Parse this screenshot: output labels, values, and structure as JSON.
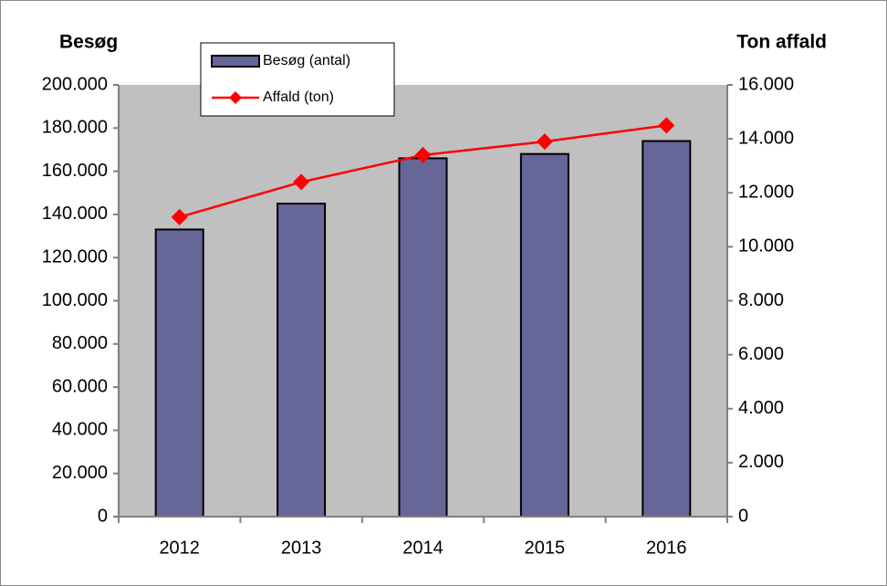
{
  "chart_data": {
    "type": "bar_line",
    "y_title": "Besøg",
    "y2_title": "Ton affald",
    "categories": [
      "2012",
      "2013",
      "2014",
      "2015",
      "2016"
    ],
    "series": [
      {
        "name": "Besøg (antal)",
        "color": "#666699",
        "type": "bar",
        "values": [
          133000,
          145000,
          166000,
          168000,
          174000
        ]
      },
      {
        "name": "Affald (ton)",
        "color": "#ff0000",
        "type": "line",
        "axis": "y2",
        "values": [
          11100,
          12400,
          13400,
          13900,
          14500
        ]
      }
    ],
    "ylim": [
      0,
      200000
    ],
    "yticks": [
      0,
      {
        "value": 20000,
        "label": "20.000"
      },
      {
        "value": 40000,
        "label": "40.000"
      },
      {
        "value": 60000,
        "label": "60.000"
      },
      {
        "value": 80000,
        "label": "80.000"
      },
      {
        "value": 100000,
        "label": "100.000"
      },
      {
        "value": 120000,
        "label": "120.000"
      },
      {
        "value": 140000,
        "label": "140.000"
      },
      {
        "value": 160000,
        "label": "160.000"
      },
      {
        "value": 180000,
        "label": "180.000"
      },
      {
        "value": 200000,
        "label": "200.000"
      }
    ],
    "y2lim": [
      0,
      16000
    ],
    "y2ticks": [
      0,
      {
        "value": 2000,
        "label": "2.000"
      },
      {
        "value": 4000,
        "label": "4.000"
      },
      {
        "value": 6000,
        "label": "6.000"
      },
      {
        "value": 8000,
        "label": "8.000"
      },
      {
        "value": 10000,
        "label": "10.000"
      },
      {
        "value": 12000,
        "label": "12.000"
      },
      {
        "value": 14000,
        "label": "14.000"
      },
      {
        "value": 16000,
        "label": "16.000"
      }
    ],
    "plot_background": "#c0c0c0"
  }
}
